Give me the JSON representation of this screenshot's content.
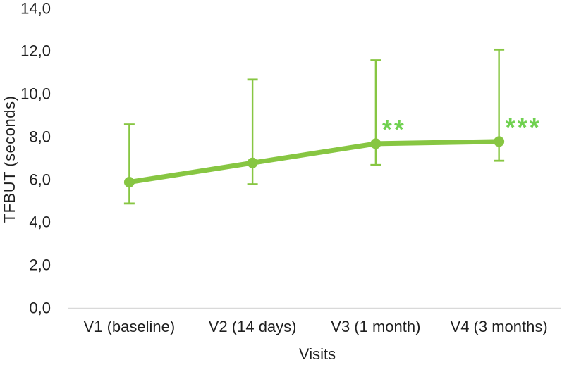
{
  "chart_data": {
    "type": "line",
    "title": "",
    "xlabel": "Visits",
    "ylabel": "TFBUT (seconds)",
    "categories": [
      "V1 (baseline)",
      "V2 (14 days)",
      "V3 (1 month)",
      "V4 (3 months)"
    ],
    "series": [
      {
        "name": "TFBUT",
        "values": [
          5.9,
          6.8,
          7.7,
          7.8
        ],
        "error_upper": [
          8.6,
          10.7,
          11.6,
          12.1
        ],
        "error_lower": [
          4.9,
          5.8,
          6.7,
          6.9
        ],
        "color": "#87c642"
      }
    ],
    "annotations": [
      {
        "category_index": 2,
        "text": "**",
        "color": "#70d150"
      },
      {
        "category_index": 3,
        "text": "***",
        "color": "#70d150"
      }
    ],
    "ylim": [
      0,
      14
    ],
    "ytick_step": 2,
    "ytick_labels": [
      "0,0",
      "2,0",
      "4,0",
      "6,0",
      "8,0",
      "10,0",
      "12,0",
      "14,0"
    ],
    "decimal_separator": ",",
    "grid": false,
    "legend": "none",
    "axis_line_color": "#d9d9d9",
    "text_color": "#1f1f1f",
    "background": "#ffffff"
  }
}
